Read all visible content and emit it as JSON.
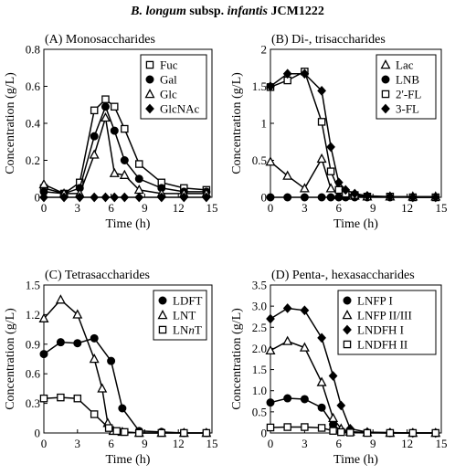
{
  "figure": {
    "title_italic_part": "B. longum",
    "title_bold_part_1": " subsp. ",
    "title_italic_part_2": "infantis",
    "title_bold_part_3": " JCM1222"
  },
  "chart_data": [
    {
      "type": "line",
      "title": "(A) Monosaccharides",
      "xlabel": "Time (h)",
      "ylabel": "Concentration (g/L)",
      "xlim": [
        0,
        15
      ],
      "ylim": [
        0,
        0.8
      ],
      "xticks": [
        0,
        3,
        6,
        9,
        12,
        15
      ],
      "yticks": [
        0,
        0.2,
        0.4,
        0.6,
        0.8
      ],
      "ytick_labels": [
        "0",
        "0.2",
        "0.4",
        "0.6",
        "0.8"
      ],
      "legend_position": "top-right",
      "series": [
        {
          "name": "Fuc",
          "marker": "square-open",
          "x": [
            0,
            1.8,
            3.2,
            4.5,
            5.5,
            6.3,
            7.2,
            8.5,
            10.5,
            12.5,
            14.5
          ],
          "values": [
            0.05,
            0.02,
            0.08,
            0.47,
            0.53,
            0.49,
            0.37,
            0.18,
            0.08,
            0.05,
            0.04
          ]
        },
        {
          "name": "Gal",
          "marker": "circle-filled",
          "x": [
            0,
            1.8,
            3.2,
            4.5,
            5.5,
            6.3,
            7.2,
            8.5,
            10.5,
            12.5,
            14.5
          ],
          "values": [
            0.03,
            0.02,
            0.05,
            0.33,
            0.49,
            0.36,
            0.2,
            0.1,
            0.05,
            0.03,
            0.03
          ]
        },
        {
          "name": "Glc",
          "marker": "triangle-open",
          "x": [
            0,
            1.8,
            3.2,
            4.5,
            5.5,
            6.3,
            7.2,
            8.5,
            10.5,
            12.5,
            14.5
          ],
          "values": [
            0.07,
            0.02,
            0.02,
            0.23,
            0.43,
            0.13,
            0.12,
            0.04,
            0.02,
            0.02,
            0.02
          ]
        },
        {
          "name": "GlcNAc",
          "marker": "diamond-filled",
          "x": [
            0,
            1.8,
            3.2,
            4.5,
            5.5,
            6.3,
            7.2,
            8.5,
            10.5,
            12.5,
            14.5
          ],
          "values": [
            0.0,
            0.0,
            0.0,
            0.0,
            0.0,
            0.0,
            0.0,
            0.0,
            0.0,
            0.0,
            0.0
          ]
        }
      ]
    },
    {
      "type": "line",
      "title": "(B) Di-, trisaccharides",
      "xlabel": "Time (h)",
      "ylabel": "Concentration (g/L)",
      "xlim": [
        0,
        15
      ],
      "ylim": [
        0,
        2
      ],
      "xticks": [
        0,
        3,
        6,
        9,
        12,
        15
      ],
      "yticks": [
        0,
        0.5,
        1,
        1.5,
        2
      ],
      "ytick_labels": [
        "0",
        "0.5",
        "1",
        "1.5",
        "2"
      ],
      "legend_position": "top-right",
      "series": [
        {
          "name": "Lac",
          "marker": "triangle-open",
          "x": [
            0,
            1.5,
            3,
            4.5,
            5.3,
            6,
            6.6,
            7.4,
            8.5,
            10.5,
            12.5,
            14.5
          ],
          "values": [
            0.48,
            0.29,
            0.12,
            0.52,
            0.12,
            0.03,
            0.02,
            0.02,
            0.01,
            0.01,
            0.01,
            0.01
          ]
        },
        {
          "name": "LNB",
          "marker": "circle-filled",
          "x": [
            0,
            1.5,
            3,
            4.5,
            5.3,
            6,
            6.6,
            7.4,
            8.5,
            10.5,
            12.5,
            14.5
          ],
          "values": [
            0.0,
            0.0,
            0.0,
            0.0,
            0.0,
            0.0,
            0.0,
            0.0,
            0.0,
            0.0,
            0.0,
            0.0
          ]
        },
        {
          "name": "2'-FL",
          "marker": "square-open",
          "x": [
            0,
            1.5,
            3,
            4.5,
            5.3,
            6,
            6.6,
            7.4,
            8.5,
            10.5,
            12.5,
            14.5
          ],
          "values": [
            1.49,
            1.58,
            1.7,
            1.02,
            0.35,
            0.1,
            0.05,
            0.03,
            0.01,
            0.01,
            0.0,
            0.0
          ]
        },
        {
          "name": "3-FL",
          "marker": "diamond-filled",
          "x": [
            0,
            1.5,
            3,
            4.5,
            5.3,
            6,
            6.6,
            7.4,
            8.5,
            10.5,
            12.5,
            14.5
          ],
          "values": [
            1.5,
            1.67,
            1.67,
            1.44,
            0.68,
            0.2,
            0.1,
            0.05,
            0.02,
            0.01,
            0.0,
            0.0
          ]
        }
      ]
    },
    {
      "type": "line",
      "title": "(C) Tetrasaccharides",
      "xlabel": "Time (h)",
      "ylabel": "Concentration (g/L)",
      "xlim": [
        0,
        15
      ],
      "ylim": [
        0,
        1.5
      ],
      "xticks": [
        0,
        3,
        6,
        9,
        12,
        15
      ],
      "yticks": [
        0,
        0.3,
        0.6,
        0.9,
        1.2,
        1.5
      ],
      "ytick_labels": [
        "0",
        "0.3",
        "0.6",
        "0.9",
        "1.2",
        "1.5"
      ],
      "legend_position": "top-right",
      "series": [
        {
          "name": "LDFT",
          "marker": "circle-filled",
          "x": [
            0,
            1.5,
            3,
            4.5,
            6,
            7,
            8.5,
            10.5,
            12.5,
            14.5
          ],
          "values": [
            0.8,
            0.92,
            0.91,
            0.96,
            0.73,
            0.25,
            0.02,
            0.01,
            0.0,
            0.0
          ]
        },
        {
          "name": "LNT",
          "marker": "triangle-open",
          "x": [
            0,
            1.5,
            3,
            4.5,
            5.2,
            5.7,
            6.2,
            7,
            8.5,
            10.5,
            12.5,
            14.5
          ],
          "values": [
            1.16,
            1.35,
            1.2,
            0.75,
            0.45,
            0.1,
            0.02,
            0.01,
            0.0,
            0.0,
            0.0,
            0.0
          ]
        },
        {
          "name": "LNnT",
          "marker": "square-open",
          "x": [
            0,
            1.5,
            3,
            4.5,
            5.8,
            6.5,
            7.2,
            8.5,
            10.5,
            12.5,
            14.5
          ],
          "values": [
            0.35,
            0.36,
            0.35,
            0.19,
            0.05,
            0.02,
            0.01,
            0.0,
            0.0,
            0.0,
            0.0
          ]
        }
      ],
      "legend_entries": [
        {
          "prefix": "LDFT",
          "italic": "",
          "suffix": ""
        },
        {
          "prefix": "LNT",
          "italic": "",
          "suffix": ""
        },
        {
          "prefix": "LN",
          "italic": "n",
          "suffix": "T"
        }
      ]
    },
    {
      "type": "line",
      "title": "(D) Penta-, hexasaccharides",
      "xlabel": "Time (h)",
      "ylabel": "Concentration (g/L)",
      "xlim": [
        0,
        15
      ],
      "ylim": [
        0,
        3.5
      ],
      "xticks": [
        0,
        3,
        6,
        9,
        12,
        15
      ],
      "yticks": [
        0,
        0.5,
        1,
        1.5,
        2,
        2.5,
        3,
        3.5
      ],
      "ytick_labels": [
        "0",
        "0.5",
        "1.0",
        "1.5",
        "2.0",
        "2.5",
        "3.0",
        "3.5"
      ],
      "legend_position": "top-right",
      "series": [
        {
          "name": "LNFP I",
          "marker": "circle-filled",
          "x": [
            0,
            1.5,
            3,
            4.5,
            5.5,
            6.2,
            7,
            8.5,
            10.5,
            12.5,
            14.5
          ],
          "values": [
            0.72,
            0.82,
            0.8,
            0.6,
            0.2,
            0.05,
            0.02,
            0.01,
            0.0,
            0.0,
            0.0
          ]
        },
        {
          "name": "LNFP II/III",
          "marker": "triangle-open",
          "x": [
            0,
            1.5,
            3,
            4.5,
            5.5,
            6.2,
            7,
            8.5,
            10.5,
            12.5,
            14.5
          ],
          "values": [
            1.95,
            2.17,
            2.02,
            1.2,
            0.35,
            0.1,
            0.03,
            0.01,
            0.0,
            0.0,
            0.0
          ]
        },
        {
          "name": "LNDFH I",
          "marker": "diamond-filled",
          "x": [
            0,
            1.5,
            3,
            4.5,
            5.5,
            6.2,
            7,
            8.5,
            10.5,
            12.5,
            14.5
          ],
          "values": [
            2.7,
            2.95,
            2.9,
            2.25,
            1.35,
            0.65,
            0.1,
            0.02,
            0.01,
            0.0,
            0.0
          ]
        },
        {
          "name": "LNDFH II",
          "marker": "square-open",
          "x": [
            0,
            1.5,
            3,
            4.5,
            5.5,
            6.2,
            7,
            8.5,
            10.5,
            12.5,
            14.5
          ],
          "values": [
            0.13,
            0.14,
            0.14,
            0.12,
            0.05,
            0.02,
            0.01,
            0.0,
            0.0,
            0.0,
            0.0
          ]
        }
      ]
    }
  ]
}
